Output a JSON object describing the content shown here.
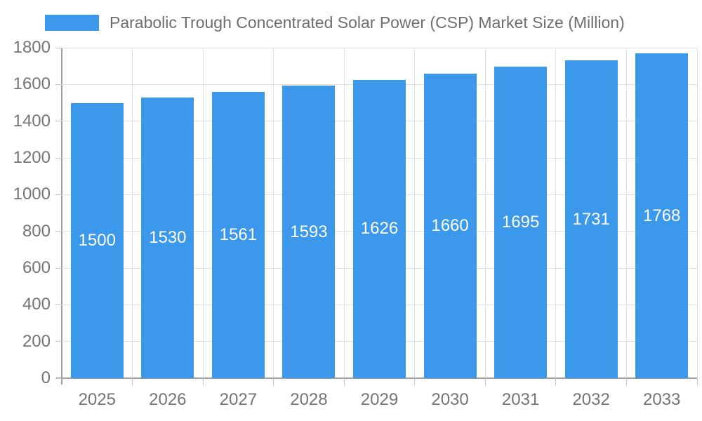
{
  "chart_data": {
    "type": "bar",
    "title": "",
    "legend_position": "top",
    "series_name": "Parabolic Trough Concentrated Solar Power (CSP) Market Size (Million)",
    "categories": [
      "2025",
      "2026",
      "2027",
      "2028",
      "2029",
      "2030",
      "2031",
      "2032",
      "2033"
    ],
    "values": [
      1500,
      1530,
      1561,
      1593,
      1626,
      1660,
      1695,
      1731,
      1768
    ],
    "value_labels": [
      "1500",
      "1530",
      "1561",
      "1593",
      "1626",
      "1660",
      "1695",
      "1731",
      "1768"
    ],
    "ylim": [
      0,
      1800
    ],
    "ytick_step": 200,
    "yticks": [
      0,
      200,
      400,
      600,
      800,
      1000,
      1200,
      1400,
      1600,
      1800
    ],
    "grid": true,
    "xlabel": "",
    "ylabel": "",
    "colors": {
      "bar": "#3B98EB",
      "value_label": "#ffffff",
      "axis_text": "#757575",
      "legend_text": "#6e6e6e",
      "grid_line": "#e0e0e0",
      "tick_line": "#c4c4c4",
      "axis_line": "#9e9e9e",
      "background": "#ffffff"
    }
  }
}
